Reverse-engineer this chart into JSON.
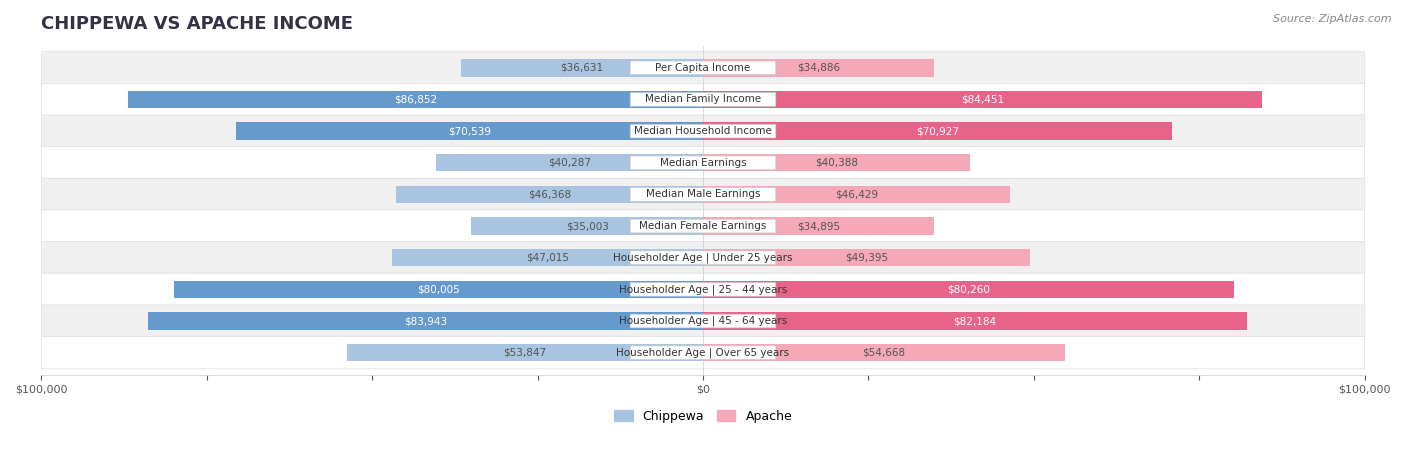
{
  "title": "CHIPPEWA VS APACHE INCOME",
  "source": "Source: ZipAtlas.com",
  "categories": [
    "Per Capita Income",
    "Median Family Income",
    "Median Household Income",
    "Median Earnings",
    "Median Male Earnings",
    "Median Female Earnings",
    "Householder Age | Under 25 years",
    "Householder Age | 25 - 44 years",
    "Householder Age | 45 - 64 years",
    "Householder Age | Over 65 years"
  ],
  "chippewa_values": [
    36631,
    86852,
    70539,
    40287,
    46368,
    35003,
    47015,
    80005,
    83943,
    53847
  ],
  "apache_values": [
    34886,
    84451,
    70927,
    40388,
    46429,
    34895,
    49395,
    80260,
    82184,
    54668
  ],
  "chippewa_labels": [
    "$36,631",
    "$86,852",
    "$70,539",
    "$40,287",
    "$46,368",
    "$35,003",
    "$47,015",
    "$80,005",
    "$83,943",
    "$53,847"
  ],
  "apache_labels": [
    "$34,886",
    "$84,451",
    "$70,927",
    "$40,388",
    "$46,429",
    "$34,895",
    "$49,395",
    "$80,260",
    "$82,184",
    "$54,668"
  ],
  "chippewa_color_light": "#a8c4e0",
  "chippewa_color_dark": "#6699cc",
  "apache_color_light": "#f4a8b8",
  "apache_color_dark": "#e8638a",
  "threshold": 70000,
  "max_val": 100000,
  "bar_height": 0.55,
  "bg_row_color": "#f0f0f0",
  "bg_row_color2": "#ffffff",
  "row_border_color": "#dddddd",
  "label_center_bg": "#f5f5f5",
  "label_center_border": "#dddddd",
  "x_tick_labels": [
    "$100,000",
    "",
    "",
    "",
    "",
    "$0",
    "",
    "",
    "",
    "",
    "$100,000"
  ],
  "title_color": "#333344",
  "source_color": "#888888"
}
